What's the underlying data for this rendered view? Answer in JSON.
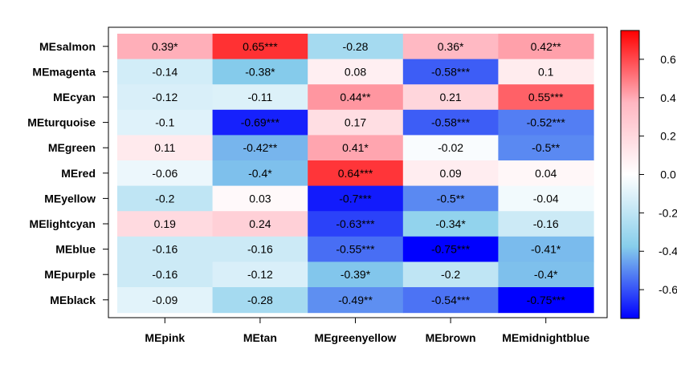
{
  "chart_data": {
    "type": "heatmap",
    "rows": [
      "MEsalmon",
      "MEmagenta",
      "MEcyan",
      "MEturquoise",
      "MEgreen",
      "MEred",
      "MEyellow",
      "MElightcyan",
      "MEblue",
      "MEpurple",
      "MEblack"
    ],
    "cols": [
      "MEpink",
      "MEtan",
      "MEgreenyellow",
      "MEbrown",
      "MEmidnightblue"
    ],
    "values": [
      [
        0.39,
        0.65,
        -0.28,
        0.36,
        0.42
      ],
      [
        -0.14,
        -0.38,
        0.08,
        -0.58,
        0.1
      ],
      [
        -0.12,
        -0.11,
        0.44,
        0.21,
        0.55
      ],
      [
        -0.1,
        -0.69,
        0.17,
        -0.58,
        -0.52
      ],
      [
        0.11,
        -0.42,
        0.41,
        -0.02,
        -0.5
      ],
      [
        -0.06,
        -0.4,
        0.64,
        0.09,
        0.04
      ],
      [
        -0.2,
        0.03,
        -0.7,
        -0.5,
        -0.04
      ],
      [
        0.19,
        0.24,
        -0.63,
        -0.34,
        -0.16
      ],
      [
        -0.16,
        -0.16,
        -0.55,
        -0.75,
        -0.41
      ],
      [
        -0.16,
        -0.12,
        -0.39,
        -0.2,
        -0.4
      ],
      [
        -0.09,
        -0.28,
        -0.49,
        -0.54,
        -0.75
      ]
    ],
    "labels": [
      [
        "0.39*",
        "0.65***",
        "-0.28",
        "0.36*",
        "0.42**"
      ],
      [
        "-0.14",
        "-0.38*",
        "0.08",
        "-0.58***",
        "0.1"
      ],
      [
        "-0.12",
        "-0.11",
        "0.44**",
        "0.21",
        "0.55***"
      ],
      [
        "-0.1",
        "-0.69***",
        "0.17",
        "-0.58***",
        "-0.52***"
      ],
      [
        "0.11",
        "-0.42**",
        "0.41*",
        "-0.02",
        "-0.5**"
      ],
      [
        "-0.06",
        "-0.4*",
        "0.64***",
        "0.09",
        "0.04"
      ],
      [
        "-0.2",
        "0.03",
        "-0.7***",
        "-0.5**",
        "-0.04"
      ],
      [
        "0.19",
        "0.24",
        "-0.63***",
        "-0.34*",
        "-0.16"
      ],
      [
        "-0.16",
        "-0.16",
        "-0.55***",
        "-0.75***",
        "-0.41*"
      ],
      [
        "-0.16",
        "-0.12",
        "-0.39*",
        "-0.2",
        "-0.4*"
      ],
      [
        "-0.09",
        "-0.28",
        "-0.49**",
        "-0.54***",
        "-0.75***"
      ]
    ],
    "colorbar": {
      "range": [
        -0.75,
        0.75
      ],
      "ticks": [
        -0.6,
        -0.4,
        -0.2,
        0.0,
        0.2,
        0.4,
        0.6
      ],
      "tick_labels": [
        "-0.6",
        "-0.4",
        "-0.2",
        "0.0",
        "0.2",
        "0.4",
        "0.6"
      ],
      "colors": [
        "#0000ff",
        "#87ceeb",
        "#ffffff",
        "#ffb6c1",
        "#ff0000"
      ]
    },
    "title": "",
    "xlabel": "",
    "ylabel": ""
  }
}
